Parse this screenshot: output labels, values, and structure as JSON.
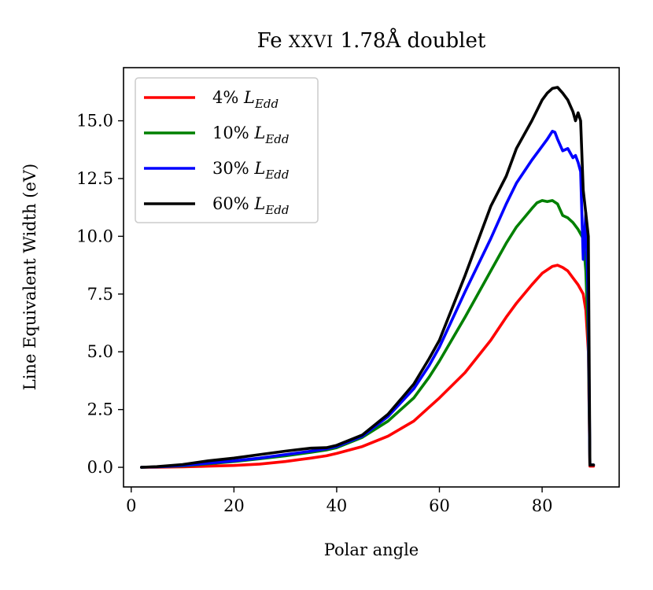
{
  "chart_data": {
    "type": "line",
    "title": "Fe XXVI 1.78Å doublet",
    "title_parts": {
      "element": "Fe ",
      "ion": "XXVI",
      "rest": " 1.78Å doublet"
    },
    "xlabel": "Polar angle",
    "ylabel": "Line Equivalent Width (eV)",
    "xlim": [
      -1.5,
      95
    ],
    "ylim": [
      -0.85,
      17.3
    ],
    "xticks": [
      0,
      20,
      40,
      60,
      80
    ],
    "xtick_labels": [
      "0",
      "20",
      "40",
      "60",
      "80"
    ],
    "yticks": [
      0.0,
      2.5,
      5.0,
      7.5,
      10.0,
      12.5,
      15.0
    ],
    "ytick_labels": [
      "0.0",
      "2.5",
      "5.0",
      "7.5",
      "10.0",
      "12.5",
      "15.0"
    ],
    "legend": "top-left",
    "grid": false,
    "series": [
      {
        "name": "4% L_Edd",
        "label_prefix": "4% ",
        "label_var": "L",
        "label_sub": "Edd",
        "color": "#ff0000",
        "x": [
          2,
          5,
          10,
          15,
          20,
          25,
          30,
          35,
          38,
          40,
          45,
          50,
          55,
          58,
          60,
          65,
          70,
          73,
          75,
          78,
          80,
          82,
          83,
          84,
          85,
          86,
          87,
          88,
          88.5,
          89,
          89.3,
          89.5,
          90
        ],
        "y": [
          0,
          0,
          0.02,
          0.05,
          0.08,
          0.14,
          0.25,
          0.4,
          0.5,
          0.6,
          0.9,
          1.35,
          2.0,
          2.6,
          3.0,
          4.1,
          5.5,
          6.5,
          7.1,
          7.9,
          8.4,
          8.7,
          8.75,
          8.65,
          8.5,
          8.2,
          7.9,
          7.5,
          6.8,
          5.0,
          0.05,
          0.05,
          0.05
        ]
      },
      {
        "name": "10% L_Edd",
        "label_prefix": "10% ",
        "label_var": "L",
        "label_sub": "Edd",
        "color": "#008000",
        "x": [
          2,
          5,
          10,
          15,
          20,
          25,
          30,
          35,
          38,
          40,
          45,
          50,
          55,
          58,
          60,
          65,
          70,
          73,
          75,
          78,
          79,
          80,
          81,
          82,
          83,
          84,
          85,
          86,
          87,
          88,
          88.5,
          89,
          89.3,
          89.5,
          90
        ],
        "y": [
          0,
          0.02,
          0.06,
          0.15,
          0.25,
          0.37,
          0.5,
          0.65,
          0.75,
          0.85,
          1.3,
          2.0,
          3.0,
          3.9,
          4.6,
          6.5,
          8.5,
          9.7,
          10.4,
          11.2,
          11.45,
          11.55,
          11.5,
          11.55,
          11.4,
          10.9,
          10.8,
          10.6,
          10.3,
          9.9,
          8.5,
          5.5,
          0.1,
          0.1,
          0.1
        ]
      },
      {
        "name": "30% L_Edd",
        "label_prefix": "30% ",
        "label_var": "L",
        "label_sub": "Edd",
        "color": "#0000ff",
        "x": [
          2,
          5,
          10,
          15,
          20,
          25,
          30,
          35,
          38,
          40,
          45,
          50,
          55,
          58,
          60,
          65,
          70,
          73,
          75,
          78,
          80,
          81,
          82,
          82.5,
          83,
          84,
          85,
          86,
          86.5,
          87,
          87.5,
          88,
          88.5,
          89,
          89.3,
          89.5,
          90
        ],
        "y": [
          0,
          0.02,
          0.08,
          0.18,
          0.28,
          0.4,
          0.55,
          0.7,
          0.8,
          0.9,
          1.35,
          2.2,
          3.4,
          4.4,
          5.2,
          7.6,
          9.9,
          11.4,
          12.3,
          13.3,
          13.9,
          14.2,
          14.55,
          14.5,
          14.2,
          13.7,
          13.8,
          13.4,
          13.5,
          13.2,
          12.8,
          9.0,
          11.0,
          7.0,
          0.1,
          0.1,
          0.1
        ]
      },
      {
        "name": "60% L_Edd",
        "label_prefix": "60% ",
        "label_var": "L",
        "label_sub": "Edd",
        "color": "#000000",
        "x": [
          2,
          5,
          10,
          15,
          20,
          25,
          30,
          35,
          38,
          40,
          45,
          50,
          55,
          58,
          60,
          65,
          70,
          73,
          75,
          78,
          80,
          81,
          82,
          83,
          84,
          85,
          86,
          86.5,
          87,
          87.5,
          88,
          88.5,
          89,
          89.3,
          89.5,
          90
        ],
        "y": [
          0,
          0.03,
          0.12,
          0.28,
          0.4,
          0.55,
          0.7,
          0.83,
          0.85,
          0.95,
          1.4,
          2.3,
          3.6,
          4.7,
          5.5,
          8.3,
          11.3,
          12.6,
          13.8,
          15.0,
          15.9,
          16.2,
          16.4,
          16.45,
          16.2,
          15.9,
          15.4,
          15.0,
          15.35,
          15.0,
          12.0,
          11.0,
          10.0,
          0.1,
          0.1,
          0.1
        ]
      }
    ]
  }
}
